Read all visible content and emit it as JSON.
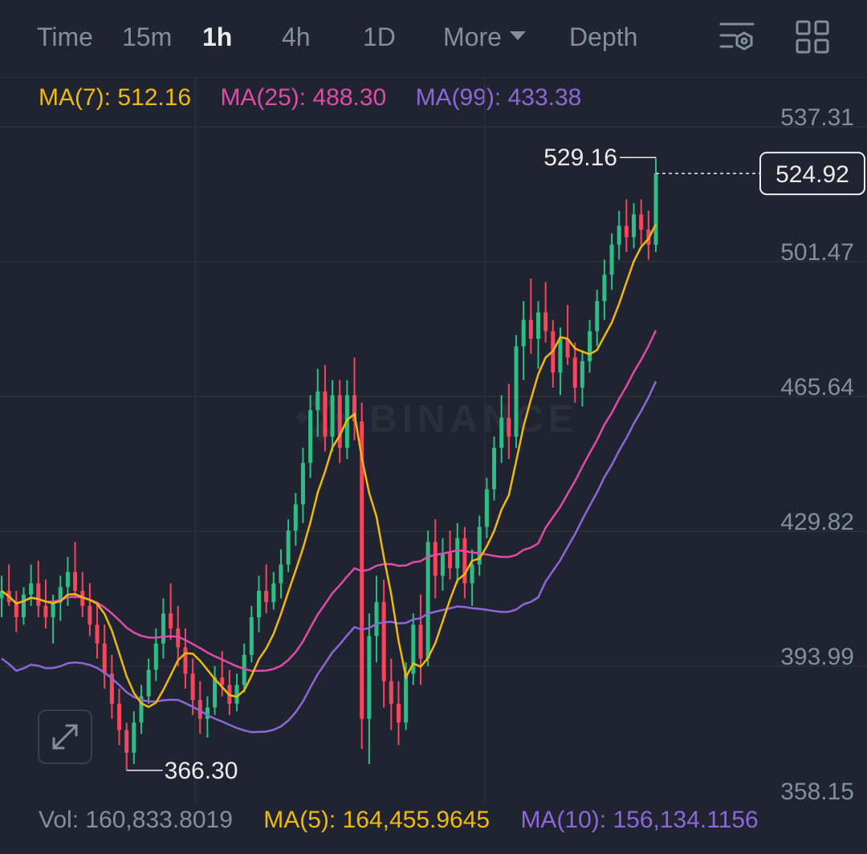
{
  "toolbar": {
    "tabs": [
      {
        "label": "Time",
        "active": false
      },
      {
        "label": "15m",
        "active": false
      },
      {
        "label": "1h",
        "active": true
      },
      {
        "label": "4h",
        "active": false
      },
      {
        "label": "1D",
        "active": false
      },
      {
        "label": "More",
        "active": false
      },
      {
        "label": "Depth",
        "active": false
      }
    ],
    "icons": [
      "indicator-settings-icon",
      "grid-layout-icon"
    ]
  },
  "ma_legend": {
    "ma7": "MA(7): 512.16",
    "ma25": "MA(25): 488.30",
    "ma99": "MA(99): 433.38"
  },
  "volume_legend": {
    "vol": "Vol: 160,833.8019",
    "ma5": "MA(5): 164,455.9645",
    "ma10": "MA(10): 156,134.1156"
  },
  "watermark": "BINANCE",
  "colors": {
    "up": "#2ebd85",
    "down": "#f6465d",
    "ma7": "#f0b90b",
    "ma25": "#e04aa8",
    "ma99": "#8e66d9",
    "grid": "#2b3139",
    "axis_text": "#848e9c"
  },
  "chart_data": {
    "type": "candlestick",
    "y_axis_ticks": [
      "537.31",
      "501.47",
      "465.64",
      "429.82",
      "393.99",
      "358.15"
    ],
    "ylim": [
      358.15,
      537.31
    ],
    "last_price": "524.92",
    "high_marker": "529.16",
    "low_marker": "366.30",
    "high_value": 529.16,
    "low_value": 366.3,
    "last_value": 524.92,
    "candles": [
      [
        412,
        418,
        407,
        414
      ],
      [
        414,
        421,
        410,
        411
      ],
      [
        411,
        414,
        403,
        407
      ],
      [
        407,
        415,
        405,
        413
      ],
      [
        413,
        421,
        410,
        416
      ],
      [
        416,
        422,
        407,
        410
      ],
      [
        410,
        417,
        404,
        407
      ],
      [
        407,
        413,
        400,
        411
      ],
      [
        411,
        418,
        406,
        415
      ],
      [
        415,
        423,
        410,
        419
      ],
      [
        419,
        427,
        412,
        414
      ],
      [
        414,
        419,
        407,
        410
      ],
      [
        410,
        416,
        402,
        405
      ],
      [
        405,
        411,
        396,
        400
      ],
      [
        400,
        405,
        388,
        392
      ],
      [
        392,
        397,
        380,
        384
      ],
      [
        384,
        388,
        373,
        377
      ],
      [
        377,
        379,
        366.3,
        371
      ],
      [
        371,
        382,
        368,
        379
      ],
      [
        379,
        389,
        376,
        386
      ],
      [
        386,
        396,
        384,
        393
      ],
      [
        393,
        404,
        390,
        400
      ],
      [
        400,
        412,
        396,
        408
      ],
      [
        408,
        416,
        401,
        404
      ],
      [
        404,
        410,
        394,
        399
      ],
      [
        399,
        404,
        388,
        392
      ],
      [
        392,
        396,
        381,
        385
      ],
      [
        385,
        390,
        376,
        380
      ],
      [
        380,
        386,
        375,
        383
      ],
      [
        383,
        394,
        381,
        391
      ],
      [
        391,
        398,
        386,
        389
      ],
      [
        389,
        393,
        381,
        384
      ],
      [
        384,
        392,
        382,
        389
      ],
      [
        389,
        400,
        387,
        397
      ],
      [
        397,
        410,
        395,
        407
      ],
      [
        407,
        418,
        403,
        414
      ],
      [
        414,
        421,
        408,
        411
      ],
      [
        411,
        419,
        409,
        416
      ],
      [
        416,
        425,
        412,
        421
      ],
      [
        421,
        433,
        419,
        430
      ],
      [
        430,
        440,
        426,
        437
      ],
      [
        437,
        452,
        432,
        448
      ],
      [
        448,
        466,
        444,
        462
      ],
      [
        462,
        473,
        455,
        467
      ],
      [
        467,
        474,
        451,
        455
      ],
      [
        455,
        470,
        451,
        466
      ],
      [
        466,
        470,
        448,
        452
      ],
      [
        452,
        470,
        449,
        466
      ],
      [
        466,
        476,
        454,
        459
      ],
      [
        459,
        464,
        372,
        380
      ],
      [
        380,
        408,
        368,
        402
      ],
      [
        402,
        418,
        395,
        411
      ],
      [
        411,
        417,
        383,
        390
      ],
      [
        390,
        396,
        377,
        384
      ],
      [
        384,
        390,
        373,
        379
      ],
      [
        379,
        395,
        377,
        392
      ],
      [
        392,
        408,
        389,
        405
      ],
      [
        405,
        413,
        389,
        396
      ],
      [
        396,
        430,
        394,
        427
      ],
      [
        427,
        433,
        412,
        418
      ],
      [
        418,
        428,
        414,
        424
      ],
      [
        424,
        430,
        417,
        420
      ],
      [
        420,
        432,
        416,
        428
      ],
      [
        428,
        431,
        412,
        416
      ],
      [
        416,
        425,
        410,
        421
      ],
      [
        421,
        434,
        418,
        431
      ],
      [
        431,
        444,
        428,
        441
      ],
      [
        441,
        455,
        438,
        452
      ],
      [
        452,
        466,
        448,
        460
      ],
      [
        460,
        469,
        449,
        455
      ],
      [
        455,
        482,
        452,
        479
      ],
      [
        479,
        491,
        470,
        486
      ],
      [
        486,
        497,
        477,
        481
      ],
      [
        481,
        491,
        473,
        488
      ],
      [
        488,
        496,
        480,
        483
      ],
      [
        483,
        486,
        468,
        472
      ],
      [
        472,
        484,
        466,
        481
      ],
      [
        481,
        490,
        474,
        476
      ],
      [
        476,
        480,
        464,
        468
      ],
      [
        468,
        478,
        463,
        475
      ],
      [
        475,
        486,
        472,
        483
      ],
      [
        483,
        494,
        479,
        491
      ],
      [
        491,
        502,
        486,
        498
      ],
      [
        498,
        509,
        494,
        506
      ],
      [
        506,
        515,
        502,
        511
      ],
      [
        511,
        518,
        504,
        508
      ],
      [
        508,
        517,
        505,
        514
      ],
      [
        514,
        518,
        506,
        510
      ],
      [
        510,
        515,
        502,
        506
      ],
      [
        506,
        529.16,
        504,
        524.92
      ]
    ]
  }
}
